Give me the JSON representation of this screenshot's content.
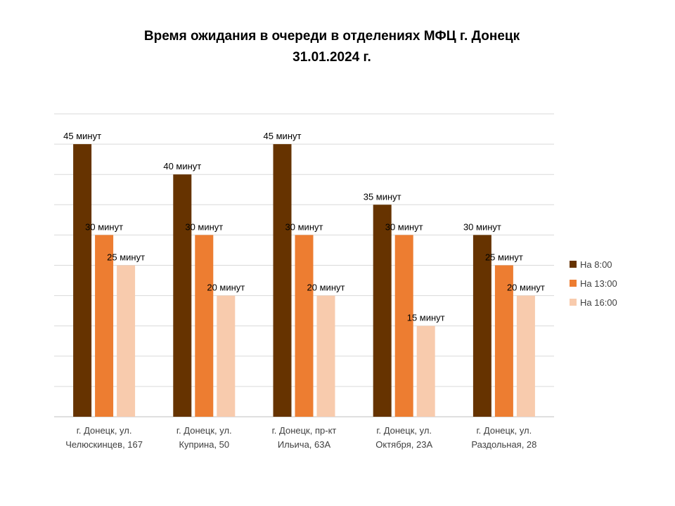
{
  "chart_data": {
    "type": "bar",
    "title": [
      "Время ожидания в очереди в отделениях МФЦ г. Донецк",
      "31.01.2024 г."
    ],
    "categories": [
      [
        "г. Донецк, ул.",
        "Челюскинцев, 167"
      ],
      [
        "г. Донецк, ул.",
        "Куприна, 50"
      ],
      [
        "г. Донецк, пр-кт",
        "Ильича, 63А"
      ],
      [
        "г. Донецк, ул.",
        "Октября, 23А"
      ],
      [
        "г. Донецк, ул.",
        "Раздольная, 28"
      ]
    ],
    "series": [
      {
        "name": "На 8:00",
        "color": "#663300",
        "values": [
          45,
          40,
          45,
          35,
          30
        ],
        "labels": [
          "45 минут",
          "40 минут",
          "45 минут",
          "35 минут",
          "30 минут"
        ]
      },
      {
        "name": "На 13:00",
        "color": "#ED7D31",
        "values": [
          30,
          30,
          30,
          30,
          25
        ],
        "labels": [
          "30 минут",
          "30 минут",
          "30 минут",
          "30 минут",
          "25 минут"
        ]
      },
      {
        "name": "На 16:00",
        "color": "#F8CBAD",
        "values": [
          25,
          20,
          20,
          15,
          20
        ],
        "labels": [
          "25 минут",
          "20 минут",
          "20 минут",
          "15 минут",
          "20 минут"
        ]
      }
    ],
    "ylim": [
      0,
      50
    ],
    "gridlines": true,
    "legend_position": "right"
  }
}
